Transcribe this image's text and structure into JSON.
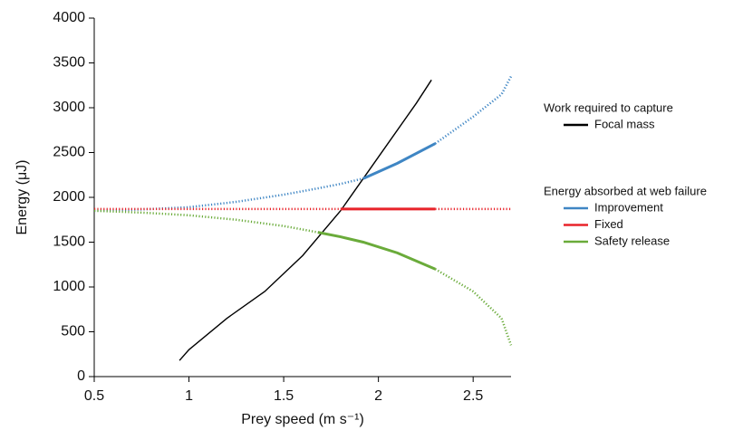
{
  "chart_data": {
    "type": "line",
    "xlabel": "Prey speed (m s⁻¹)",
    "ylabel": "Energy (μJ)",
    "xlim": [
      0.5,
      2.7
    ],
    "ylim": [
      0,
      4000
    ],
    "xticks": [
      0.5,
      1,
      1.5,
      2,
      2.5
    ],
    "yticks": [
      0,
      500,
      1000,
      1500,
      2000,
      2500,
      3000,
      3500,
      4000
    ],
    "legend_titles": [
      "Work required to capture",
      "Energy absorbed at web failure"
    ],
    "series": [
      {
        "name": "Focal mass",
        "color": "#000000",
        "group": 0,
        "x": [
          0.95,
          1.0,
          1.2,
          1.4,
          1.6,
          1.8,
          2.0,
          2.2,
          2.28
        ],
        "values": [
          180,
          300,
          650,
          950,
          1350,
          1850,
          2450,
          3050,
          3310
        ]
      },
      {
        "name": "Improvement",
        "color": "#3f86c4",
        "group": 1,
        "x": [
          0.5,
          0.75,
          1.0,
          1.25,
          1.5,
          1.68,
          1.8,
          1.92,
          2.1,
          2.3,
          2.5,
          2.65,
          2.7
        ],
        "values": [
          1850,
          1865,
          1890,
          1950,
          2030,
          2100,
          2150,
          2210,
          2380,
          2600,
          2900,
          3150,
          3350
        ]
      },
      {
        "name": "Fixed",
        "color": "#e8232a",
        "group": 1,
        "x": [
          0.5,
          0.75,
          1.0,
          1.25,
          1.5,
          1.68,
          1.8,
          1.92,
          2.1,
          2.3,
          2.5,
          2.65,
          2.7
        ],
        "values": [
          1870,
          1870,
          1870,
          1870,
          1870,
          1870,
          1870,
          1870,
          1870,
          1870,
          1870,
          1870,
          1870
        ]
      },
      {
        "name": "Safety release",
        "color": "#6aab3a",
        "group": 1,
        "x": [
          0.5,
          0.75,
          1.0,
          1.25,
          1.5,
          1.68,
          1.8,
          1.92,
          2.1,
          2.3,
          2.5,
          2.65,
          2.7
        ],
        "values": [
          1850,
          1830,
          1800,
          1750,
          1680,
          1610,
          1560,
          1500,
          1380,
          1200,
          950,
          650,
          350
        ]
      }
    ]
  }
}
